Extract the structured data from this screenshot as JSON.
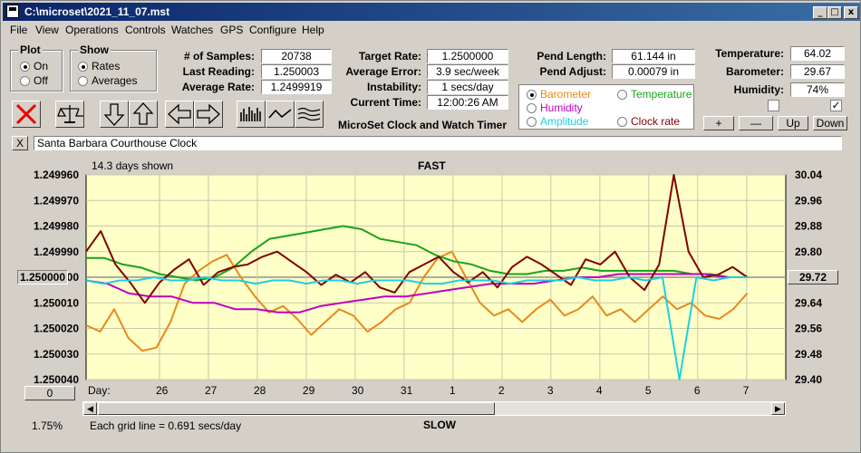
{
  "window": {
    "title": "C:\\microset\\2021_11_07.mst"
  },
  "menu": [
    "File",
    "View",
    "Operations",
    "Controls",
    "Watches",
    "GPS",
    "Configure",
    "Help"
  ],
  "plot_group": {
    "title": "Plot",
    "options": [
      "On",
      "Off"
    ],
    "selected": "On"
  },
  "show_group": {
    "title": "Show",
    "options": [
      "Rates",
      "Averages"
    ],
    "selected": "Rates"
  },
  "stats": {
    "samples_label": "# of Samples:",
    "samples": "20738",
    "last_label": "Last Reading:",
    "last": "1.250003",
    "avg_label": "Average Rate:",
    "avg": "1.2499919"
  },
  "target": {
    "target_label": "Target Rate:",
    "target": "1.2500000",
    "error_label": "Average Error:",
    "error": "3.9 sec/week",
    "instab_label": "Instability:",
    "instab": "1 secs/day",
    "time_label": "Current Time:",
    "time": "12:00:26 AM"
  },
  "pend": {
    "length_label": "Pend Length:",
    "length": "61.144 in",
    "adjust_label": "Pend Adjust:",
    "adjust": "0.00079 in"
  },
  "env": {
    "temp_label": "Temperature:",
    "temp": "64.02",
    "baro_label": "Barometer:",
    "baro": "29.67",
    "humid_label": "Humidity:",
    "humid": "74%",
    "check2": true
  },
  "aux_series": [
    {
      "name": "Barometer",
      "color": "#e8891a",
      "selected": true
    },
    {
      "name": "Temperature",
      "color": "#19a319",
      "selected": false
    },
    {
      "name": "Humidity",
      "color": "#c000c0",
      "selected": false
    },
    {
      "name": "Clock rate",
      "color": "#800000",
      "selected": false
    },
    {
      "name": "Amplitude",
      "color": "#1ecfe0",
      "selected": false
    }
  ],
  "app_label": "MicroSet Clock and Watch Timer",
  "small_buttons": [
    "+",
    "—",
    "Up",
    "Down"
  ],
  "clock_name": "Santa Barbara Courthouse Clock",
  "close_x": "X",
  "chart_header": {
    "days_shown": "14.3 days shown",
    "top": "FAST",
    "bottom": "SLOW",
    "grid_note": "Each grid line = 0.691 secs/day",
    "pct": "1.75%",
    "left_btn": "1.250000",
    "right_btn": "29.72",
    "zero_btn": "0",
    "day_label": "Day:"
  },
  "chart_data": {
    "type": "line",
    "y_left_ticks": [
      "1.249960",
      "1.249970",
      "1.249980",
      "1.249990",
      "1.250000",
      "1.250010",
      "1.250020",
      "1.250030",
      "1.250040"
    ],
    "y_right_ticks": [
      "30.04",
      "29.96",
      "29.88",
      "29.80",
      "29.72",
      "29.64",
      "29.56",
      "29.48",
      "29.40"
    ],
    "x_ticks": [
      "26",
      "27",
      "28",
      "29",
      "30",
      "31",
      "1",
      "2",
      "3",
      "4",
      "5",
      "6",
      "7"
    ],
    "x_range_days": [
      0,
      14.3
    ],
    "series": [
      {
        "color": "#e8891a",
        "values": [
          29.57,
          29.55,
          29.62,
          29.53,
          29.49,
          29.5,
          29.58,
          29.7,
          29.74,
          29.77,
          29.79,
          29.72,
          29.66,
          29.61,
          29.63,
          29.59,
          29.54,
          29.58,
          29.62,
          29.6,
          29.55,
          29.58,
          29.62,
          29.64,
          29.72,
          29.78,
          29.8,
          29.72,
          29.64,
          29.6,
          29.62,
          29.58,
          29.62,
          29.65,
          29.6,
          29.62,
          29.66,
          29.6,
          29.62,
          29.58,
          29.62,
          29.66,
          29.62,
          29.64,
          29.6,
          29.59,
          29.62,
          29.67
        ]
      },
      {
        "color": "#19a319",
        "values": [
          29.78,
          29.78,
          29.76,
          29.75,
          29.73,
          29.72,
          29.71,
          29.72,
          29.75,
          29.8,
          29.84,
          29.85,
          29.86,
          29.87,
          29.88,
          29.87,
          29.84,
          29.83,
          29.82,
          29.79,
          29.77,
          29.76,
          29.74,
          29.73,
          29.73,
          29.74,
          29.74,
          29.75,
          29.74,
          29.74,
          29.74,
          29.74,
          29.74,
          29.73,
          29.73,
          29.72,
          29.72
        ]
      },
      {
        "color": "#c000c0",
        "values": [
          29.71,
          29.7,
          29.67,
          29.66,
          29.66,
          29.64,
          29.64,
          29.62,
          29.62,
          29.61,
          29.61,
          29.63,
          29.64,
          29.65,
          29.66,
          29.66,
          29.67,
          29.68,
          29.69,
          29.7,
          29.7,
          29.7,
          29.71,
          29.72,
          29.72,
          29.73,
          29.73,
          29.73,
          29.73,
          29.73,
          29.72,
          29.72
        ]
      },
      {
        "color": "#800000",
        "values": [
          1.24999,
          1.249982,
          1.249995,
          1.250002,
          1.25001,
          1.250002,
          1.249997,
          1.249993,
          1.250003,
          1.249998,
          1.249996,
          1.249995,
          1.249992,
          1.24999,
          1.249994,
          1.249998,
          1.250003,
          1.249999,
          1.250002,
          1.249998,
          1.250004,
          1.250006,
          1.249998,
          1.249995,
          1.249992,
          1.249998,
          1.250002,
          1.249998,
          1.250004,
          1.249996,
          1.249992,
          1.249995,
          1.249999,
          1.250003,
          1.249993,
          1.249995,
          1.24999,
          1.25,
          1.250005,
          1.249995,
          1.24996,
          1.24999,
          1.25,
          1.249999,
          1.249996,
          1.25
        ]
      },
      {
        "color": "#1ecfe0",
        "values": [
          29.71,
          29.7,
          29.71,
          29.71,
          29.72,
          29.71,
          29.71,
          29.72,
          29.71,
          29.71,
          29.7,
          29.71,
          29.71,
          29.7,
          29.71,
          29.71,
          29.7,
          29.71,
          29.71,
          29.71,
          29.7,
          29.7,
          29.71,
          29.71,
          29.71,
          29.7,
          29.71,
          29.71,
          29.71,
          29.72,
          29.71,
          29.71,
          29.72,
          29.71,
          29.72,
          29.4,
          29.72,
          29.71,
          29.72,
          29.72
        ]
      }
    ],
    "left_range": [
      1.24996,
      1.25004
    ],
    "right_range": [
      29.4,
      30.04
    ]
  }
}
